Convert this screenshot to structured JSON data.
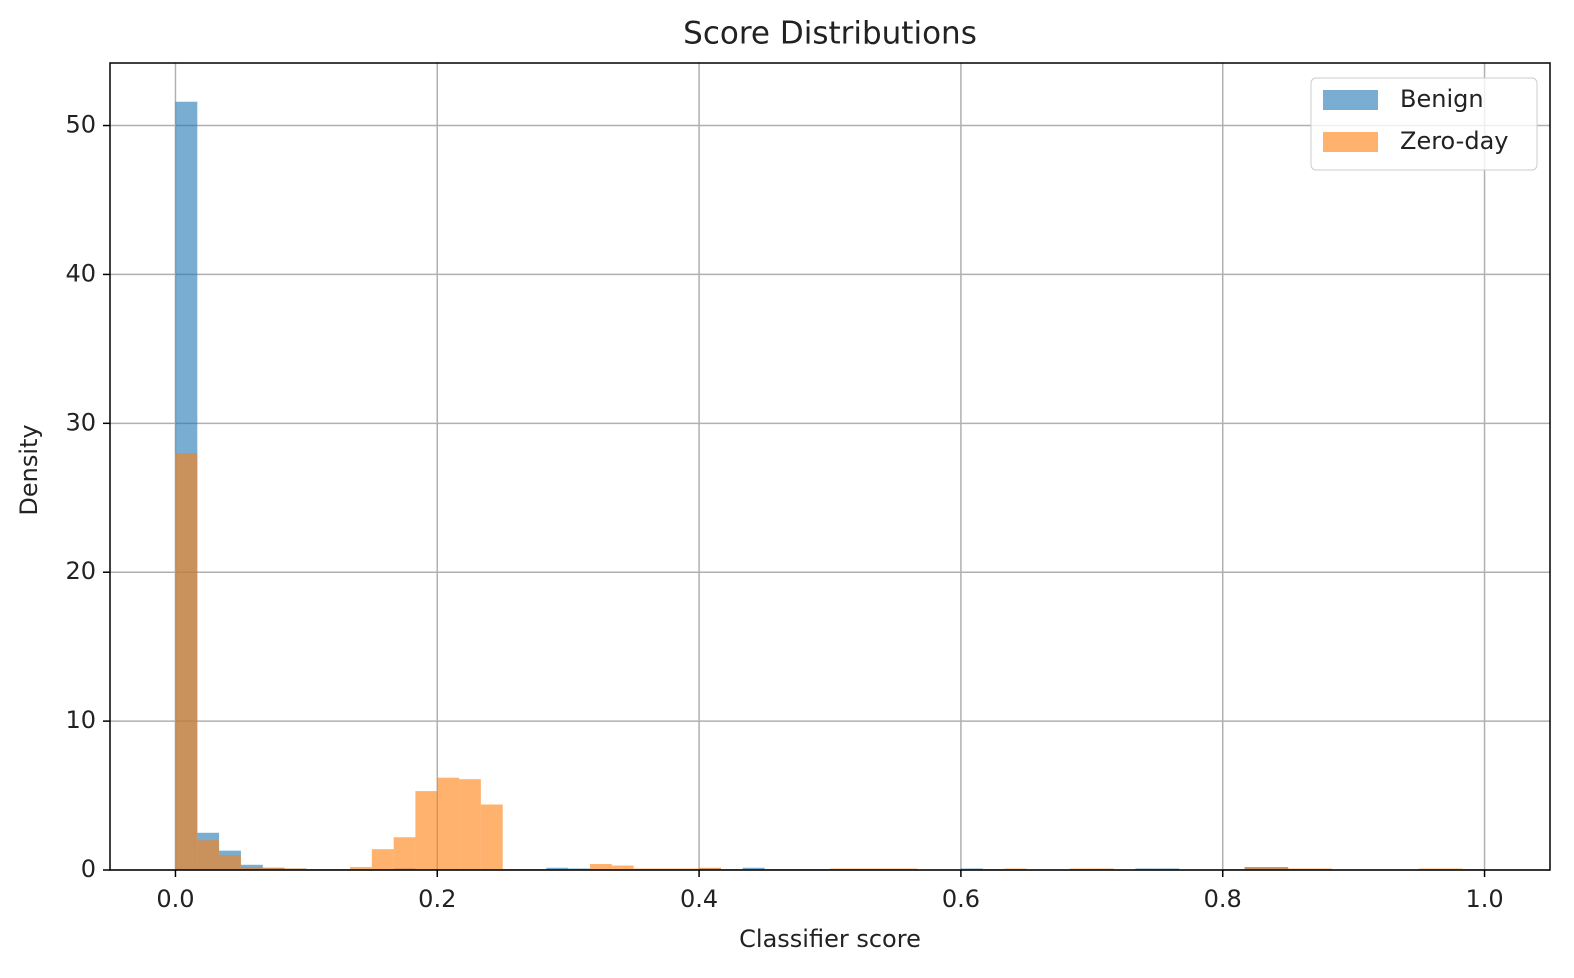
{
  "chart_data": {
    "type": "histogram",
    "title": "Score Distributions",
    "xlabel": "Classifier score",
    "ylabel": "Density",
    "bins": [
      0,
      0.0167,
      0.0333,
      0.05,
      0.0667,
      0.0833,
      0.1,
      0.1167,
      0.1333,
      0.15,
      0.1667,
      0.1833,
      0.2,
      0.2167,
      0.2333,
      0.25,
      0.2667,
      0.2833,
      0.3,
      0.3167,
      0.3333,
      0.35,
      0.3667,
      0.3833,
      0.4,
      0.4167,
      0.4333,
      0.45,
      0.4667,
      0.4833,
      0.5,
      0.5167,
      0.5333,
      0.55,
      0.5667,
      0.5833,
      0.6,
      0.6167,
      0.6333,
      0.65,
      0.6667,
      0.6833,
      0.7,
      0.7167,
      0.7333,
      0.75,
      0.7667,
      0.7833,
      0.8,
      0.8167,
      0.8333,
      0.85,
      0.8667,
      0.8833,
      0.9,
      0.9167,
      0.9333,
      0.95,
      0.9667,
      0.9833,
      1
    ],
    "series": [
      {
        "name": "Benign",
        "color": "#1f77b4",
        "values": [
          51.6,
          2.5,
          1.3,
          0.35,
          0.15,
          0.1,
          0.05,
          0.05,
          0.05,
          0.05,
          0.1,
          0.05,
          0.05,
          0.05,
          0.05,
          0.05,
          0.05,
          0.15,
          0.1,
          0.05,
          0.05,
          0.05,
          0.05,
          0.05,
          0.1,
          0.05,
          0.15,
          0.05,
          0.05,
          0.05,
          0.05,
          0.05,
          0.05,
          0.05,
          0,
          0,
          0.1,
          0.05,
          0,
          0,
          0,
          0,
          0.05,
          0,
          0.1,
          0.1,
          0,
          0,
          0.05,
          0.2,
          0.2,
          0.05,
          0.05,
          0,
          0,
          0,
          0,
          0,
          0,
          0.05
        ]
      },
      {
        "name": "Zero-day",
        "color": "#ff7f0e",
        "values": [
          28,
          2,
          1,
          0.2,
          0.15,
          0.1,
          0.05,
          0.05,
          0.2,
          1.4,
          2.2,
          5.3,
          6.2,
          6.1,
          4.4,
          0.05,
          0.05,
          0.05,
          0.05,
          0.4,
          0.3,
          0.1,
          0.1,
          0.1,
          0.15,
          0.05,
          0.05,
          0.05,
          0.05,
          0.05,
          0.1,
          0.1,
          0.1,
          0.1,
          0,
          0,
          0.05,
          0.05,
          0.1,
          0,
          0,
          0.1,
          0.1,
          0,
          0,
          0,
          0,
          0,
          0,
          0.15,
          0.15,
          0.1,
          0.1,
          0,
          0,
          0,
          0,
          0.1,
          0.1,
          0.05
        ]
      }
    ],
    "xlim": [
      -0.05,
      1.05
    ],
    "ylim": [
      0,
      54.2
    ],
    "xticks": [
      {
        "value": 0,
        "label": "0.0"
      },
      0.2,
      0.4,
      0.6,
      0.8,
      {
        "value": 1,
        "label": "1.0"
      }
    ],
    "yticks": [
      0,
      10,
      20,
      30,
      40,
      50
    ],
    "grid": true,
    "legend": "upper right"
  }
}
